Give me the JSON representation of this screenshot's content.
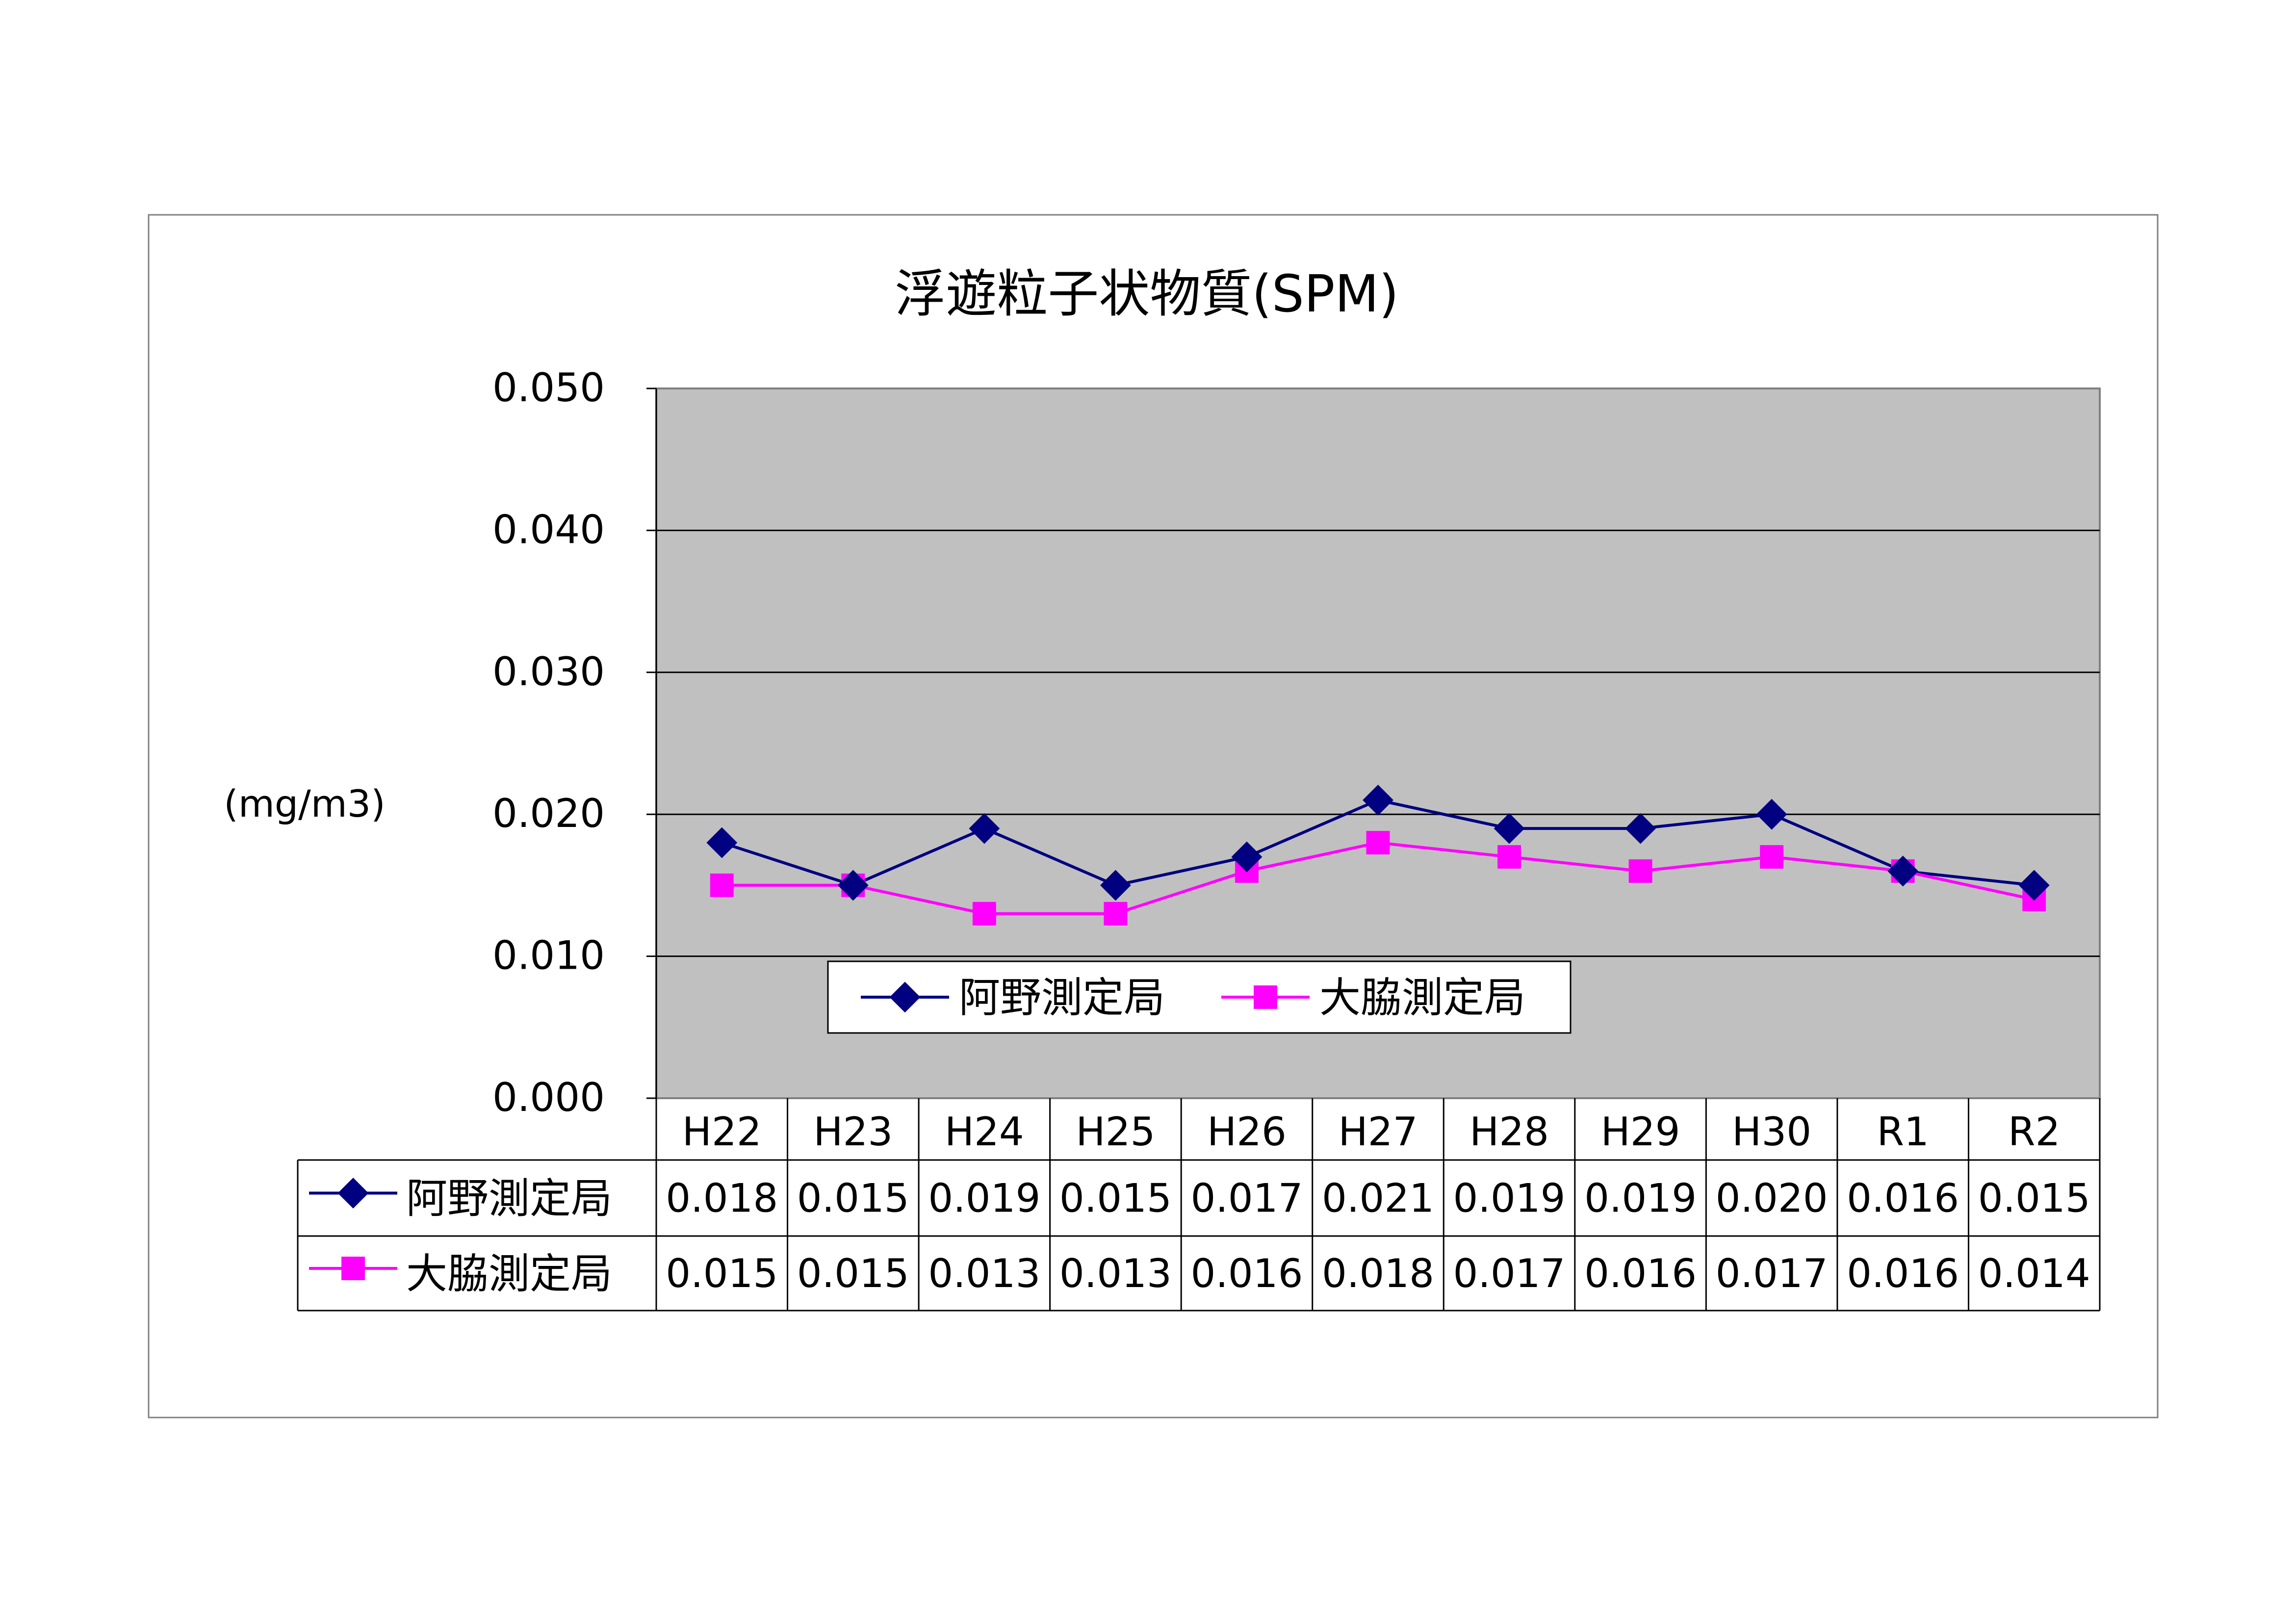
{
  "chart_data": {
    "type": "line",
    "title": "浮遊粒子状物質(SPM)",
    "ylabel": "(mg/m3)",
    "xlabel": "",
    "categories": [
      "H22",
      "H23",
      "H24",
      "H25",
      "H26",
      "H27",
      "H28",
      "H29",
      "H30",
      "R1",
      "R2"
    ],
    "ylim": [
      0,
      0.05
    ],
    "yticks": [
      "0.000",
      "0.010",
      "0.020",
      "0.030",
      "0.040",
      "0.050"
    ],
    "grid": true,
    "legend_position": "inside-bottom-center",
    "series": [
      {
        "name": "阿野測定局",
        "color": "#000080",
        "marker": "diamond",
        "values": [
          0.018,
          0.015,
          0.019,
          0.015,
          0.017,
          0.021,
          0.019,
          0.019,
          0.02,
          0.016,
          0.015
        ],
        "labels": [
          "0.018",
          "0.015",
          "0.019",
          "0.015",
          "0.017",
          "0.021",
          "0.019",
          "0.019",
          "0.020",
          "0.016",
          "0.015"
        ]
      },
      {
        "name": "大脇測定局",
        "color": "#FF00FF",
        "marker": "square",
        "values": [
          0.015,
          0.015,
          0.013,
          0.013,
          0.016,
          0.018,
          0.017,
          0.016,
          0.017,
          0.016,
          0.014
        ],
        "labels": [
          "0.015",
          "0.015",
          "0.013",
          "0.013",
          "0.016",
          "0.018",
          "0.017",
          "0.016",
          "0.017",
          "0.016",
          "0.014"
        ]
      }
    ],
    "colors": {
      "plot_background": "#C0C0C0",
      "gridline": "#000000",
      "frame": "#808080"
    },
    "data_table": true
  }
}
